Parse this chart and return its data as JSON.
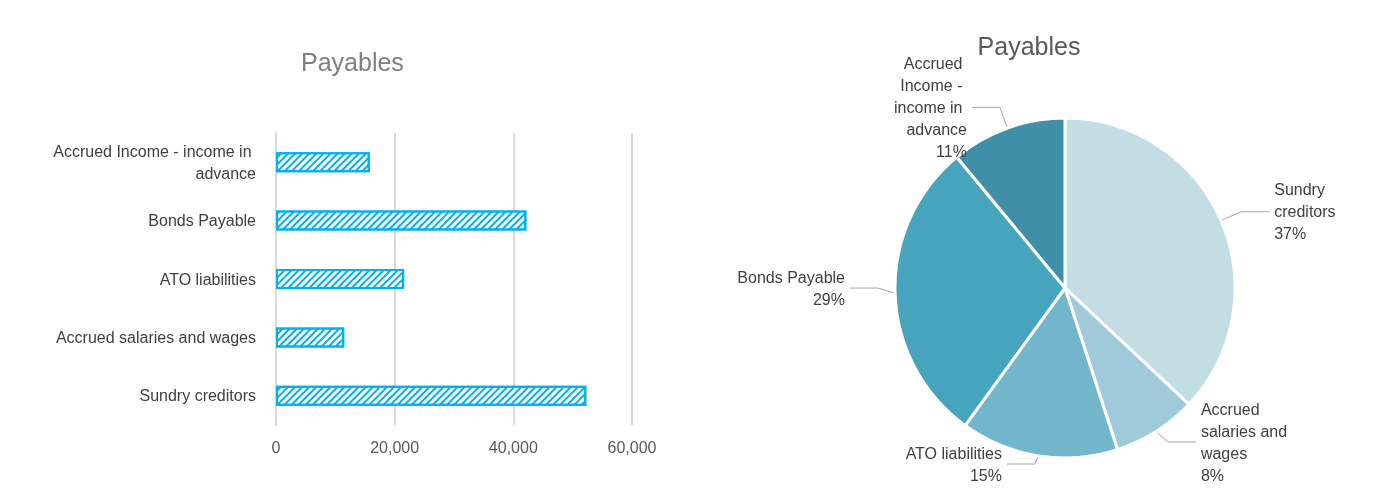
{
  "chart_data": [
    {
      "type": "bar",
      "title": "Payables",
      "orientation": "horizontal",
      "categories": [
        "Accrued Income - income in advance",
        "Bonds Payable",
        "ATO liabilities",
        "Accrued salaries and wages",
        "Sundry creditors"
      ],
      "values": [
        15800,
        42200,
        21600,
        11500,
        52300
      ],
      "color": "#00b0f0",
      "xlim": [
        0,
        60000
      ],
      "xticks": [
        0,
        {
          "value": 20000,
          "label": "20,000"
        },
        {
          "value": 40000,
          "label": "40,000"
        },
        {
          "value": 60000,
          "label": "60,000"
        }
      ],
      "grid": "x"
    },
    {
      "type": "pie",
      "title": "Payables",
      "categories": [
        "Sundry creditors",
        "Accrued salaries and wages",
        "ATO liabilities",
        "Bonds Payable",
        "Accrued Income - income in advance"
      ],
      "values": [
        37,
        8,
        15,
        29,
        11
      ],
      "value_labels": [
        "37%",
        "8%",
        "15%",
        "29%",
        "11%"
      ],
      "colors": [
        "#c3dde5",
        "#a0c9d9",
        "#72b6cc",
        "#47a4bd",
        "#3f8fa8"
      ]
    }
  ]
}
